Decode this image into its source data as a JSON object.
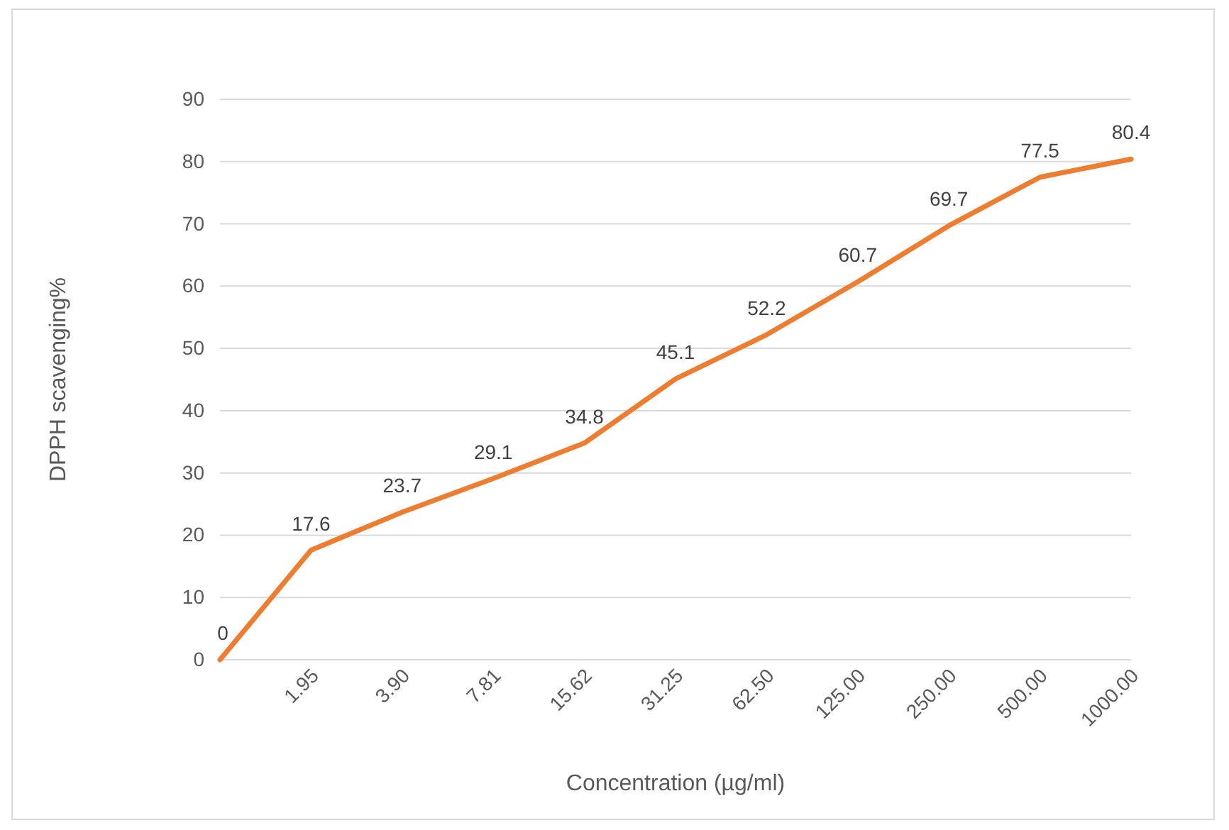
{
  "chart_data": {
    "type": "line",
    "xlabel": "Concentration (µg/ml)",
    "ylabel": "DPPH scavenging%",
    "categories": [
      null,
      "1.95",
      "3.90",
      "7.81",
      "15.62",
      "31.25",
      "62.50",
      "125.00",
      "250.00",
      "500.00",
      "1000.00"
    ],
    "values": [
      0,
      17.6,
      23.7,
      29.1,
      34.8,
      45.1,
      52.2,
      60.7,
      69.7,
      77.5,
      80.4
    ],
    "color": "#ed7d31",
    "ylim": [
      0,
      90
    ],
    "yticks": [
      0,
      10,
      20,
      30,
      40,
      50,
      60,
      70,
      80,
      90
    ],
    "grid": "y",
    "data_labels": true,
    "legend": false,
    "marker": "none",
    "line_style": "solid"
  }
}
